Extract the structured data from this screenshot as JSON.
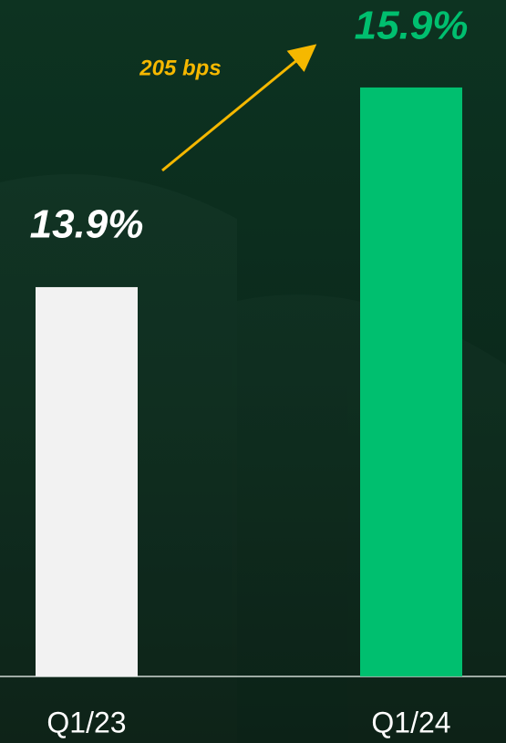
{
  "chart_data": {
    "type": "bar",
    "categories": [
      "Q1/23",
      "Q1/24"
    ],
    "values": [
      13.9,
      15.9
    ],
    "value_labels": [
      "13.9%",
      "15.9%"
    ],
    "colors": [
      "#f2f2f2",
      "#00bf6f"
    ],
    "label_colors": [
      "#ffffff",
      "#00bf6f"
    ],
    "annotation": "205 bps",
    "annotation_color": "#f5b800",
    "ylim": [
      10,
      16
    ]
  }
}
